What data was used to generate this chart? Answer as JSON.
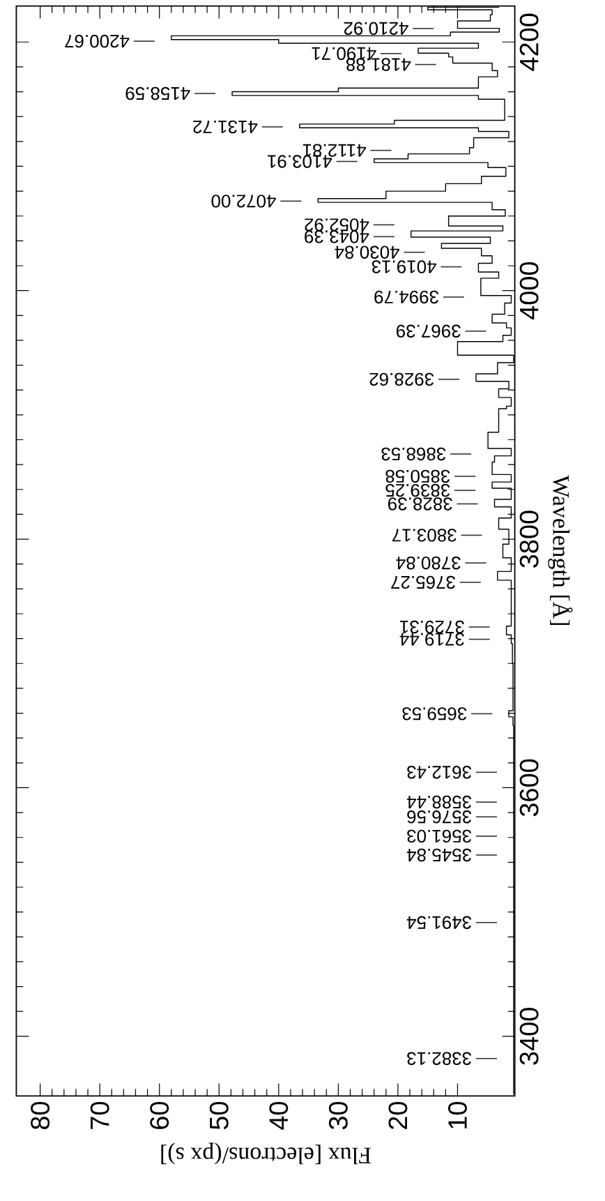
{
  "chart_data": {
    "type": "step",
    "xlabel": "Flux [electrons/(px s)]",
    "ylabel": "Wavelength [Å]",
    "color": "#000000",
    "xlim": [
      84,
      0.4
    ],
    "ylim": [
      3352,
      4229
    ],
    "xticks": [
      80,
      70,
      60,
      50,
      40,
      30,
      20,
      10
    ],
    "yticks": [
      3400,
      3600,
      3800,
      4000,
      4200
    ],
    "x": [
      0.6,
      0.7,
      1.4,
      0.7,
      0.8,
      1.0,
      1.8,
      1.0,
      3.3,
      1.0,
      2.4,
      1.4,
      3.1,
      1.0,
      3.8,
      1.0,
      4.2,
      1.0,
      4.2,
      3.8,
      1.0,
      4.9,
      3.1,
      1.8,
      1.0,
      3.1,
      1.4,
      6.9,
      3.3,
      0.6,
      10.0,
      2.4,
      1.0,
      1.8,
      4.2,
      2.1,
      1.0,
      6.1,
      3.1,
      6.5,
      4.2,
      6.0,
      12.7,
      4.5,
      17.8,
      2.4,
      11.5,
      2.0,
      4.2,
      33.4,
      22.0,
      12.0,
      6.0,
      1.9,
      4.9,
      24.0,
      18.3,
      8.0,
      7.3,
      1.4,
      6.5,
      36.5,
      20.6,
      2.1,
      6.5,
      47.8,
      30.0,
      6.5,
      3.3,
      4.2,
      10.8,
      11.5,
      16.6,
      6.5,
      40.0,
      58.0,
      11.2,
      3.0,
      10.0,
      4.5,
      4.2,
      15.0,
      3.0
    ],
    "values": [
      3353,
      3650,
      3657,
      3662,
      3700,
      3716,
      3723,
      3730,
      3767,
      3774,
      3785,
      3796,
      3808,
      3817,
      3826,
      3832,
      3841,
      3846,
      3852,
      3862,
      3867,
      3873,
      3886,
      3905,
      3907,
      3914,
      3921,
      3927,
      3933,
      3942,
      3948,
      3959,
      3964,
      3970,
      3974,
      3981,
      3990,
      3996,
      4010,
      4015,
      4022,
      4028,
      4034,
      4038,
      4043,
      4048,
      4052,
      4060,
      4065,
      4071,
      4074,
      4080,
      4086,
      4092,
      4099,
      4103,
      4106,
      4110,
      4115,
      4123,
      4128,
      4131,
      4134,
      4137,
      4154,
      4157,
      4160,
      4163,
      4172,
      4177,
      4183,
      4188,
      4191,
      4195,
      4199,
      4202,
      4205,
      4208,
      4211,
      4217,
      4222,
      4226,
      4228
    ],
    "ref_lines": [
      {
        "axis": "y",
        "value": 4210.92,
        "label": "4210.92"
      },
      {
        "axis": "y",
        "value": 4200.67,
        "label": "4200.67"
      },
      {
        "axis": "y",
        "value": 4190.71,
        "label": "4190.71"
      },
      {
        "axis": "y",
        "value": 4181.88,
        "label": "4181.88"
      },
      {
        "axis": "y",
        "value": 4158.59,
        "label": "4158.59"
      },
      {
        "axis": "y",
        "value": 4131.72,
        "label": "4131.72"
      },
      {
        "axis": "y",
        "value": 4112.81,
        "label": "4112.81"
      },
      {
        "axis": "y",
        "value": 4103.91,
        "label": "4103.91"
      },
      {
        "axis": "y",
        "value": 4072.0,
        "label": "4072.00"
      },
      {
        "axis": "y",
        "value": 4052.92,
        "label": "4052.92"
      },
      {
        "axis": "y",
        "value": 4043.39,
        "label": "4043.39"
      },
      {
        "axis": "y",
        "value": 4030.84,
        "label": "4030.84"
      },
      {
        "axis": "y",
        "value": 4019.13,
        "label": "4019.13"
      },
      {
        "axis": "y",
        "value": 3994.79,
        "label": "3994.79"
      },
      {
        "axis": "y",
        "value": 3967.39,
        "label": "3967.39"
      },
      {
        "axis": "y",
        "value": 3928.62,
        "label": "3928.62"
      },
      {
        "axis": "y",
        "value": 3868.53,
        "label": "3868.53"
      },
      {
        "axis": "y",
        "value": 3850.58,
        "label": "3850.58"
      },
      {
        "axis": "y",
        "value": 3839.25,
        "label": "3839.25"
      },
      {
        "axis": "y",
        "value": 3828.39,
        "label": "3828.39"
      },
      {
        "axis": "y",
        "value": 3803.17,
        "label": "3803.17"
      },
      {
        "axis": "y",
        "value": 3780.84,
        "label": "3780.84"
      },
      {
        "axis": "y",
        "value": 3765.27,
        "label": "3765.27"
      },
      {
        "axis": "y",
        "value": 3729.31,
        "label": "3729.31"
      },
      {
        "axis": "y",
        "value": 3719.44,
        "label": "3719.44"
      },
      {
        "axis": "y",
        "value": 3659.53,
        "label": "3659.53"
      },
      {
        "axis": "y",
        "value": 3612.43,
        "label": "3612.43"
      },
      {
        "axis": "y",
        "value": 3588.44,
        "label": "3588.44"
      },
      {
        "axis": "y",
        "value": 3576.56,
        "label": "3576.56"
      },
      {
        "axis": "y",
        "value": 3561.03,
        "label": "3561.03"
      },
      {
        "axis": "y",
        "value": 3545.84,
        "label": "3545.84"
      },
      {
        "axis": "y",
        "value": 3491.54,
        "label": "3491.54"
      },
      {
        "axis": "y",
        "value": 3382.13,
        "label": "3382.13"
      }
    ]
  }
}
